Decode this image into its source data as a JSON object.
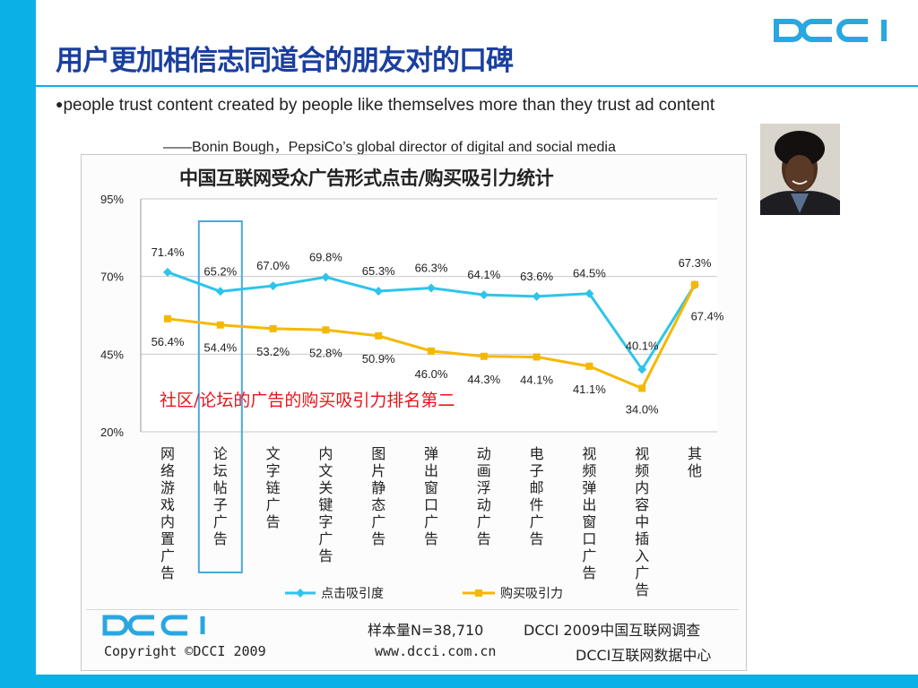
{
  "slide": {
    "title": "用户更加相信志同道合的朋友对的口碑",
    "quote": "people trust content created by people like themselves more than they trust ad content",
    "attribution": "——Bonin Bough，PepsiCo’s global director of digital and social media",
    "annotation": "社区/论坛的广告的购买吸引力排名第二",
    "logo_text": "DCCI"
  },
  "footer": {
    "copyright": "Copyright  ©DCCI  2009",
    "sample": "样本量N=38,710",
    "url": "www.dcci.com.cn",
    "source1": "DCCI   2009中国互联网调查",
    "source2": "DCCI互联网数据中心"
  },
  "colors": {
    "accent": "#0ab0e6",
    "title": "#1a3f9e",
    "click_series": "#2ec4ea",
    "buy_series": "#f5b800",
    "highlight_box": "#4aa8e0",
    "annotation": "#e8141c"
  },
  "chart_data": {
    "type": "line",
    "title": "中国互联网受众广告形式点击/购买吸引力统计",
    "xlabel": "",
    "ylabel": "",
    "ylim": [
      20,
      95
    ],
    "yticks": [
      "95%",
      "70%",
      "45%",
      "20%"
    ],
    "ytick_values": [
      95,
      70,
      45,
      20
    ],
    "grid": true,
    "legend_position": "bottom",
    "highlighted_category": "论坛帖子广告",
    "categories": [
      "网络游戏内置广告",
      "论坛帖子广告",
      "文字链广告",
      "内文关键字广告",
      "图片静态广告",
      "弹出窗口广告",
      "动画浮动广告",
      "电子邮件广告",
      "视频弹出窗口广告",
      "视频内容中插入广告",
      "其他"
    ],
    "series": [
      {
        "name": "点击吸引度",
        "values": [
          71.4,
          65.2,
          67.0,
          69.8,
          65.3,
          66.3,
          64.1,
          63.6,
          64.5,
          40.1,
          67.3
        ],
        "labels": [
          "71.4%",
          "65.2%",
          "67.0%",
          "69.8%",
          "65.3%",
          "66.3%",
          "64.1%",
          "63.6%",
          "64.5%",
          "40.1%",
          "67.3%"
        ]
      },
      {
        "name": "购买吸引力",
        "values": [
          56.4,
          54.4,
          53.2,
          52.8,
          50.9,
          46.0,
          44.3,
          44.1,
          41.1,
          34.0,
          67.4
        ],
        "labels": [
          "56.4%",
          "54.4%",
          "53.2%",
          "52.8%",
          "50.9%",
          "46.0%",
          "44.3%",
          "44.1%",
          "41.1%",
          "34.0%",
          "67.4%"
        ]
      }
    ]
  }
}
